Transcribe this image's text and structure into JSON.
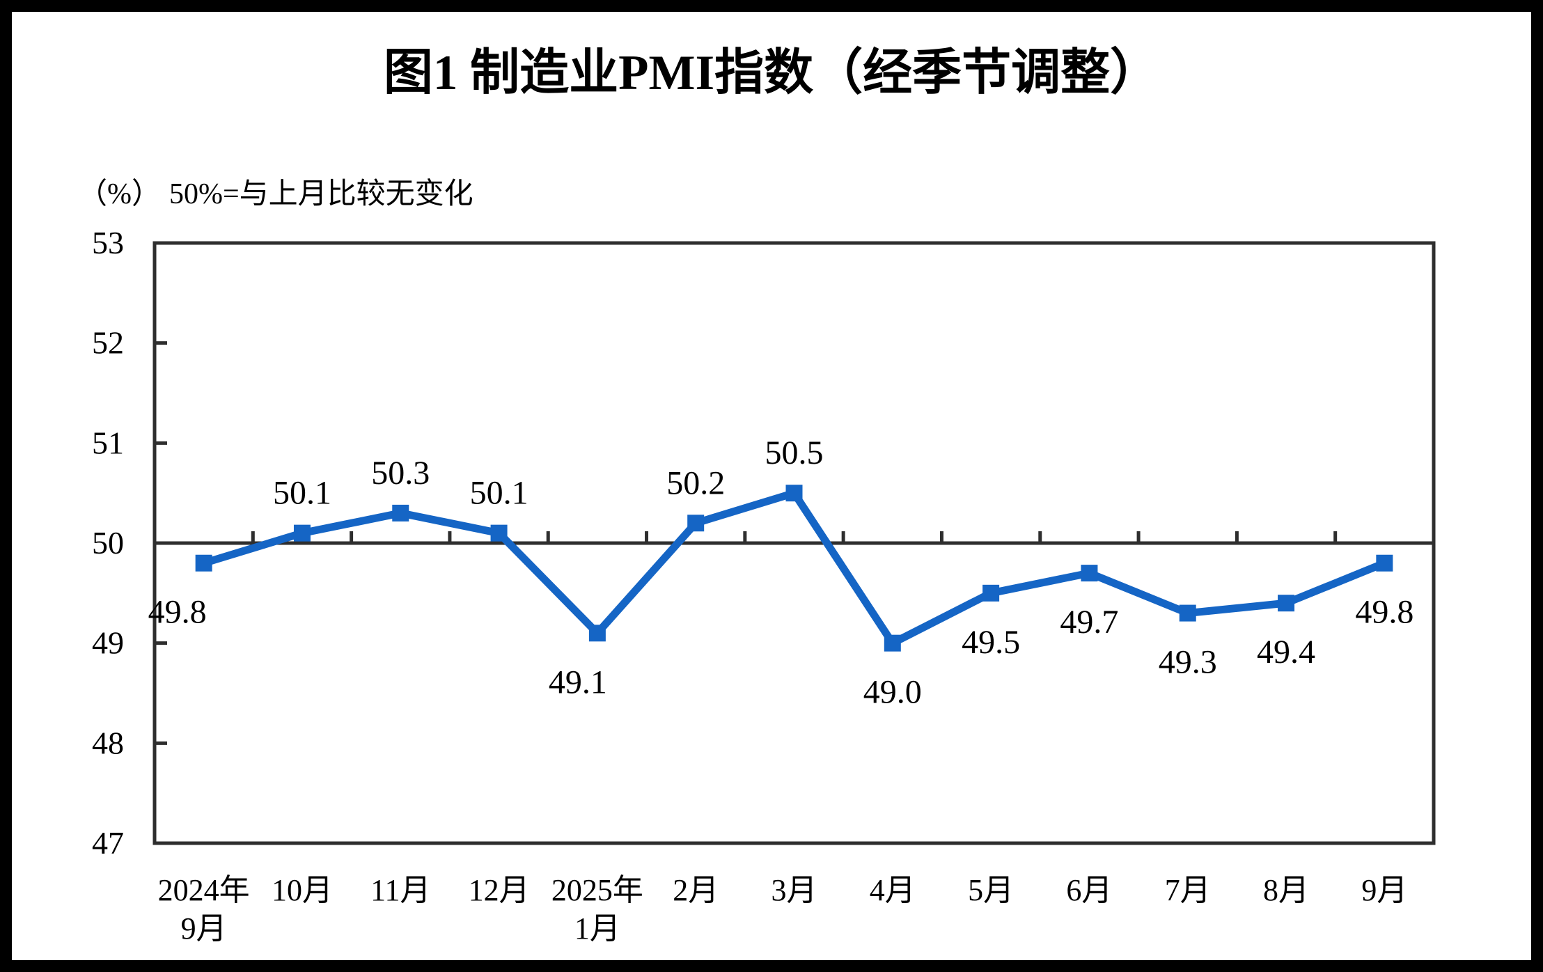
{
  "chart_data": {
    "type": "line",
    "title": "图1  制造业PMI指数（经季节调整）",
    "unit_label": "（%）",
    "reference_note": "50%=与上月比较无变化",
    "categories": [
      "2024年\n9月",
      "10月",
      "11月",
      "12月",
      "2025年\n1月",
      "2月",
      "3月",
      "4月",
      "5月",
      "6月",
      "7月",
      "8月",
      "9月"
    ],
    "values": [
      49.8,
      50.1,
      50.3,
      50.1,
      49.1,
      50.2,
      50.5,
      49.0,
      49.5,
      49.7,
      49.3,
      49.4,
      49.8
    ],
    "data_labels": [
      "49.8",
      "50.1",
      "50.3",
      "50.1",
      "49.1",
      "50.2",
      "50.5",
      "49.0",
      "49.5",
      "49.7",
      "49.3",
      "49.4",
      "49.8"
    ],
    "ylim": [
      47,
      53
    ],
    "yticks": [
      47,
      48,
      49,
      50,
      51,
      52,
      53
    ],
    "crossing_value": 50,
    "grid": "off",
    "legend": "none",
    "marker": "square",
    "colors": {
      "line": "#1565C5",
      "axis": "#2e2e2e",
      "text": "#000000",
      "frame": "#000000",
      "background": "#ffffff"
    }
  }
}
